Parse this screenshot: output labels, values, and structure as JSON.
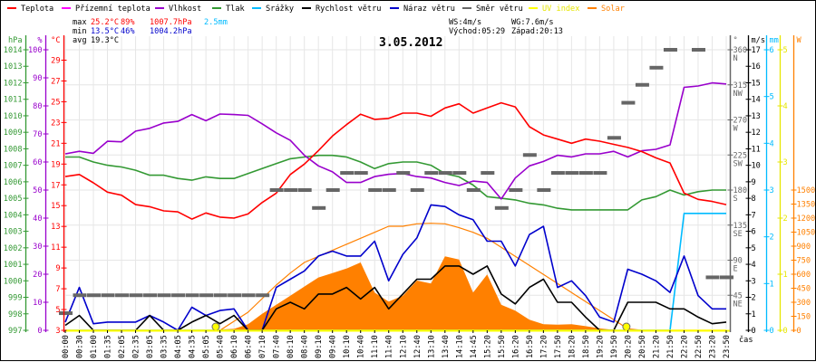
{
  "legend": [
    {
      "label": "Teplota",
      "color": "#ff0000"
    },
    {
      "label": "Přízemní teplota",
      "color": "#ff00ff"
    },
    {
      "label": "Vlhkost",
      "color": "#9900cc"
    },
    {
      "label": "Tlak",
      "color": "#339933"
    },
    {
      "label": "Srážky",
      "color": "#00bbff"
    },
    {
      "label": "Rychlost větru",
      "color": "#000000"
    },
    {
      "label": "Náraz větru",
      "color": "#0000cc"
    },
    {
      "label": "Směr větru",
      "color": "#666666"
    },
    {
      "label": "UV index",
      "color": "#ffff00"
    },
    {
      "label": "Solar",
      "color": "#ff8000"
    }
  ],
  "stats": {
    "max_label": "max",
    "max_temp": "25.2°C",
    "max_hum": "89%",
    "max_press": "1007.7hPa",
    "max_rain": "2.5mm",
    "min_label": "min",
    "min_temp": "13.5°C",
    "min_hum": "46%",
    "min_press": "1004.2hPa",
    "avg_label": "avg",
    "avg_temp": "19.3°C",
    "max_color": "#ff0000",
    "min_color": "#0000cc",
    "rain_color": "#00bbff"
  },
  "wind_info": {
    "ws": "WS:4m/s",
    "wg": "WG:7.6m/s",
    "sunrise": "Východ:05:29",
    "sunset": "Západ:20:13"
  },
  "chart_data": {
    "type": "line",
    "title": "3.05.2012",
    "xlabel": "čas",
    "grid": true,
    "x": [
      "00:00",
      "00:30",
      "01:00",
      "01:35",
      "02:05",
      "02:35",
      "03:05",
      "03:35",
      "04:05",
      "04:35",
      "05:05",
      "05:40",
      "06:10",
      "06:40",
      "07:10",
      "07:40",
      "08:10",
      "08:40",
      "09:10",
      "09:40",
      "10:10",
      "10:40",
      "11:10",
      "11:40",
      "12:10",
      "12:40",
      "13:10",
      "13:40",
      "14:10",
      "14:45",
      "15:20",
      "15:50",
      "16:20",
      "16:50",
      "17:20",
      "17:50",
      "18:20",
      "18:50",
      "19:20",
      "19:50",
      "20:20",
      "20:50",
      "21:20",
      "21:50",
      "22:20",
      "22:50",
      "23:20",
      "23:50"
    ],
    "axes": {
      "pressure": {
        "unit": "hPa",
        "color": "#339933",
        "range": [
          997,
          1014
        ],
        "ticks": [
          "997",
          "998",
          "999",
          "1000",
          "1001",
          "1002",
          "1003",
          "1004",
          "1005",
          "1006",
          "1007",
          "1008",
          "1009",
          "1010",
          "1011",
          "1012",
          "1013",
          "1014"
        ],
        "tick_values": [
          997,
          998,
          999,
          1000,
          1001,
          1002,
          1003,
          1004,
          1005,
          1006,
          1007,
          1008,
          1009,
          1010,
          1011,
          1012,
          1013,
          1014
        ]
      },
      "humidity": {
        "unit": "%",
        "color": "#9900cc",
        "range": [
          0,
          100
        ],
        "ticks": [
          "0",
          "10",
          "20",
          "30",
          "40",
          "50",
          "60",
          "70",
          "80",
          "90",
          "100"
        ],
        "tick_values": [
          0,
          10,
          20,
          30,
          40,
          50,
          60,
          70,
          80,
          90,
          100
        ]
      },
      "temp": {
        "unit": "°C",
        "color": "#ff0000",
        "range": [
          3,
          30
        ],
        "ticks": [
          "3",
          "5",
          "7",
          "9",
          "11",
          "13",
          "15",
          "17",
          "19",
          "21",
          "23",
          "25",
          "27",
          "29"
        ],
        "tick_values": [
          3,
          5,
          7,
          9,
          11,
          13,
          15,
          17,
          19,
          21,
          23,
          25,
          27,
          29
        ]
      },
      "direction": {
        "unit": "°",
        "color": "#666666",
        "range": [
          0,
          360
        ],
        "ticks": [
          "45",
          "90",
          "135",
          "180",
          "225",
          "270",
          "315",
          "360"
        ],
        "tick_values": [
          45,
          90,
          135,
          180,
          225,
          270,
          315,
          360
        ],
        "compass": [
          "NE",
          "E",
          "SE",
          "S",
          "SW",
          "W",
          "NW",
          "N"
        ]
      },
      "wind": {
        "unit": "m/s",
        "color": "#000000",
        "range": [
          0,
          17
        ],
        "ticks": [
          "0",
          "1",
          "2",
          "3",
          "4",
          "5",
          "6",
          "7",
          "8",
          "9",
          "10",
          "11",
          "12",
          "13",
          "14",
          "15",
          "16",
          "17"
        ],
        "tick_values": [
          0,
          1,
          2,
          3,
          4,
          5,
          6,
          7,
          8,
          9,
          10,
          11,
          12,
          13,
          14,
          15,
          16,
          17
        ]
      },
      "rain": {
        "unit": "mm",
        "color": "#00bbff",
        "range": [
          0,
          6
        ],
        "ticks": [
          "0",
          "1",
          "2",
          "3",
          "4",
          "5",
          "6"
        ],
        "tick_values": [
          0,
          1,
          2,
          3,
          4,
          5,
          6
        ]
      },
      "uv": {
        "unit": "",
        "color": "#e6e600",
        "range": [
          0,
          5
        ],
        "ticks": [
          "0",
          "1",
          "2",
          "3",
          "4",
          "5"
        ],
        "tick_values": [
          0,
          1,
          2,
          3,
          4,
          5
        ]
      },
      "solar": {
        "unit": "W",
        "color": "#ff8000",
        "range": [
          0,
          3000
        ],
        "ticks": [
          "0",
          "150",
          "300",
          "450",
          "600",
          "750",
          "900",
          "1050",
          "1200",
          "1350",
          "1500"
        ],
        "tick_values": [
          0,
          150,
          300,
          450,
          600,
          750,
          900,
          1050,
          1200,
          1350,
          1500
        ]
      }
    },
    "series": [
      {
        "key": "solar",
        "name": "Solar",
        "axis": "solar",
        "kind": "area",
        "color": "#ff8000",
        "values": [
          0,
          0,
          0,
          0,
          0,
          0,
          0,
          0,
          0,
          0,
          0,
          10,
          15,
          65,
          177,
          274,
          371,
          468,
          565,
          613,
          661,
          726,
          404,
          307,
          371,
          532,
          500,
          791,
          758,
          404,
          597,
          274,
          210,
          113,
          65,
          60,
          65,
          45,
          20,
          5,
          0,
          0,
          0,
          0,
          0,
          0,
          0,
          0
        ]
      },
      {
        "key": "solar_theoretical",
        "name": "Solar (theoretical)",
        "axis": "solar",
        "kind": "line",
        "color": "#ff8000",
        "values": [
          0,
          0,
          0,
          0,
          0,
          0,
          0,
          0,
          0,
          0,
          0,
          0,
          97,
          194,
          339,
          484,
          613,
          726,
          791,
          855,
          920,
          984,
          1048,
          1113,
          1113,
          1139,
          1145,
          1139,
          1097,
          1048,
          984,
          888,
          791,
          694,
          597,
          500,
          404,
          307,
          210,
          113,
          16,
          0,
          0,
          0,
          0,
          0,
          0,
          0
        ]
      },
      {
        "key": "pressure",
        "name": "Tlak",
        "axis": "pressure",
        "kind": "line",
        "color": "#339933",
        "values": [
          1007.5,
          1007.5,
          1007.2,
          1007.0,
          1006.9,
          1006.7,
          1006.4,
          1006.4,
          1006.2,
          1006.1,
          1006.3,
          1006.2,
          1006.2,
          1006.5,
          1006.8,
          1007.1,
          1007.4,
          1007.5,
          1007.6,
          1007.6,
          1007.5,
          1007.2,
          1006.8,
          1007.1,
          1007.2,
          1007.2,
          1007.0,
          1006.5,
          1006.3,
          1005.8,
          1005.1,
          1005.0,
          1004.9,
          1004.7,
          1004.6,
          1004.4,
          1004.3,
          1004.3,
          1004.3,
          1004.3,
          1004.3,
          1004.9,
          1005.1,
          1005.5,
          1005.2,
          1005.4,
          1005.5,
          1005.5
        ]
      },
      {
        "key": "humidity",
        "name": "Vlhkost",
        "axis": "humidity",
        "kind": "line",
        "color": "#9900cc",
        "values": [
          62.9,
          63.8,
          63.1,
          67.4,
          67.2,
          71.0,
          72.0,
          73.9,
          74.5,
          76.9,
          74.7,
          77.1,
          76.9,
          76.6,
          73.6,
          70.4,
          67.7,
          62.4,
          58.6,
          56.5,
          52.7,
          52.7,
          54.8,
          55.6,
          55.9,
          54.8,
          54.3,
          52.7,
          51.6,
          53.2,
          52.7,
          46.8,
          54.3,
          58.6,
          60.2,
          62.4,
          61.8,
          62.9,
          62.9,
          63.8,
          61.8,
          64.0,
          64.5,
          66.1,
          86.6,
          87.1,
          88.2,
          87.8
        ]
      },
      {
        "key": "temp",
        "name": "Teplota",
        "axis": "temp",
        "kind": "line",
        "color": "#ff0000",
        "values": [
          17.8,
          18.0,
          17.2,
          16.3,
          16.0,
          15.1,
          14.9,
          14.5,
          14.4,
          13.7,
          14.3,
          13.9,
          13.8,
          14.2,
          15.3,
          16.2,
          18.0,
          19.0,
          20.3,
          21.7,
          22.8,
          23.8,
          23.3,
          23.4,
          23.9,
          23.9,
          23.6,
          24.4,
          24.8,
          23.9,
          24.4,
          24.9,
          24.5,
          22.6,
          21.8,
          21.4,
          21.0,
          21.4,
          21.2,
          20.9,
          20.6,
          20.2,
          19.6,
          19.1,
          16.2,
          15.6,
          15.4,
          15.1
        ]
      },
      {
        "key": "rain",
        "name": "Srážky",
        "axis": "rain",
        "kind": "line",
        "color": "#00bbff",
        "values": [
          0,
          0,
          0,
          0,
          0,
          0,
          0,
          0,
          0,
          0,
          0,
          0,
          0,
          0,
          0,
          0,
          0,
          0,
          0,
          0,
          0,
          0,
          0,
          0,
          0,
          0,
          0,
          0,
          0,
          0,
          0,
          0,
          0,
          0,
          0,
          0,
          0,
          0,
          0,
          0,
          0,
          0,
          0,
          0,
          2.5,
          2.5,
          2.5,
          2.5
        ]
      },
      {
        "key": "gust",
        "name": "Náraz větru",
        "axis": "wind",
        "kind": "line",
        "color": "#0000cc",
        "values": [
          0.5,
          2.6,
          0.4,
          0.5,
          0.5,
          0.5,
          0.9,
          0.5,
          0,
          1.4,
          0.9,
          1.2,
          1.3,
          0,
          0,
          2.6,
          3.1,
          3.6,
          4.5,
          4.8,
          4.5,
          4.5,
          5.4,
          3.0,
          4.6,
          5.6,
          7.6,
          7.5,
          7.0,
          6.7,
          5.4,
          5.4,
          3.9,
          5.8,
          6.3,
          2.6,
          3.0,
          2.1,
          0.8,
          0.5,
          3.7,
          3.4,
          3.0,
          2.3,
          4.5,
          2.1,
          1.3,
          1.3
        ]
      },
      {
        "key": "wind",
        "name": "Rychlost větru",
        "axis": "wind",
        "kind": "line",
        "color": "#000000",
        "values": [
          0.3,
          0.9,
          0,
          0,
          0,
          0,
          0.9,
          0,
          0,
          0.5,
          0.9,
          0.4,
          0.9,
          0,
          0,
          1.3,
          1.7,
          1.3,
          2.2,
          2.2,
          2.6,
          1.9,
          2.6,
          1.3,
          2.2,
          3.1,
          3.1,
          3.9,
          3.9,
          3.4,
          3.9,
          2.2,
          1.6,
          2.6,
          3.1,
          1.7,
          1.7,
          0.8,
          0,
          0,
          1.7,
          1.7,
          1.7,
          1.3,
          1.3,
          0.8,
          0.4,
          0.5
        ]
      },
      {
        "key": "direction",
        "name": "Směr větru",
        "axis": "direction",
        "kind": "bars",
        "color": "#666666",
        "values": [
          22,
          45,
          45,
          45,
          45,
          45,
          45,
          45,
          45,
          45,
          45,
          45,
          45,
          45,
          45,
          180,
          180,
          180,
          157,
          180,
          202,
          202,
          180,
          180,
          202,
          180,
          202,
          202,
          202,
          180,
          202,
          157,
          180,
          225,
          180,
          202,
          202,
          202,
          202,
          247,
          292,
          315,
          337,
          360,
          null,
          360,
          68,
          68
        ]
      },
      {
        "key": "uv",
        "name": "UV index",
        "axis": "uv",
        "kind": "line",
        "color": "#ffff00",
        "values": [
          0,
          0,
          0,
          0,
          0,
          0,
          0,
          0,
          0,
          0,
          0,
          0,
          0,
          0,
          0,
          0,
          0,
          0,
          0,
          0,
          0,
          0,
          0,
          0,
          0,
          0,
          0,
          0,
          0,
          0,
          0,
          0,
          0,
          0,
          0,
          0,
          0,
          0,
          0,
          0,
          0,
          0,
          0,
          0,
          0,
          0,
          0,
          0
        ]
      }
    ],
    "sun_markers": [
      {
        "name": "sunrise",
        "time": "05:29",
        "index": 10.7
      },
      {
        "name": "sunset",
        "time": "20:13",
        "index": 39.9
      }
    ]
  }
}
